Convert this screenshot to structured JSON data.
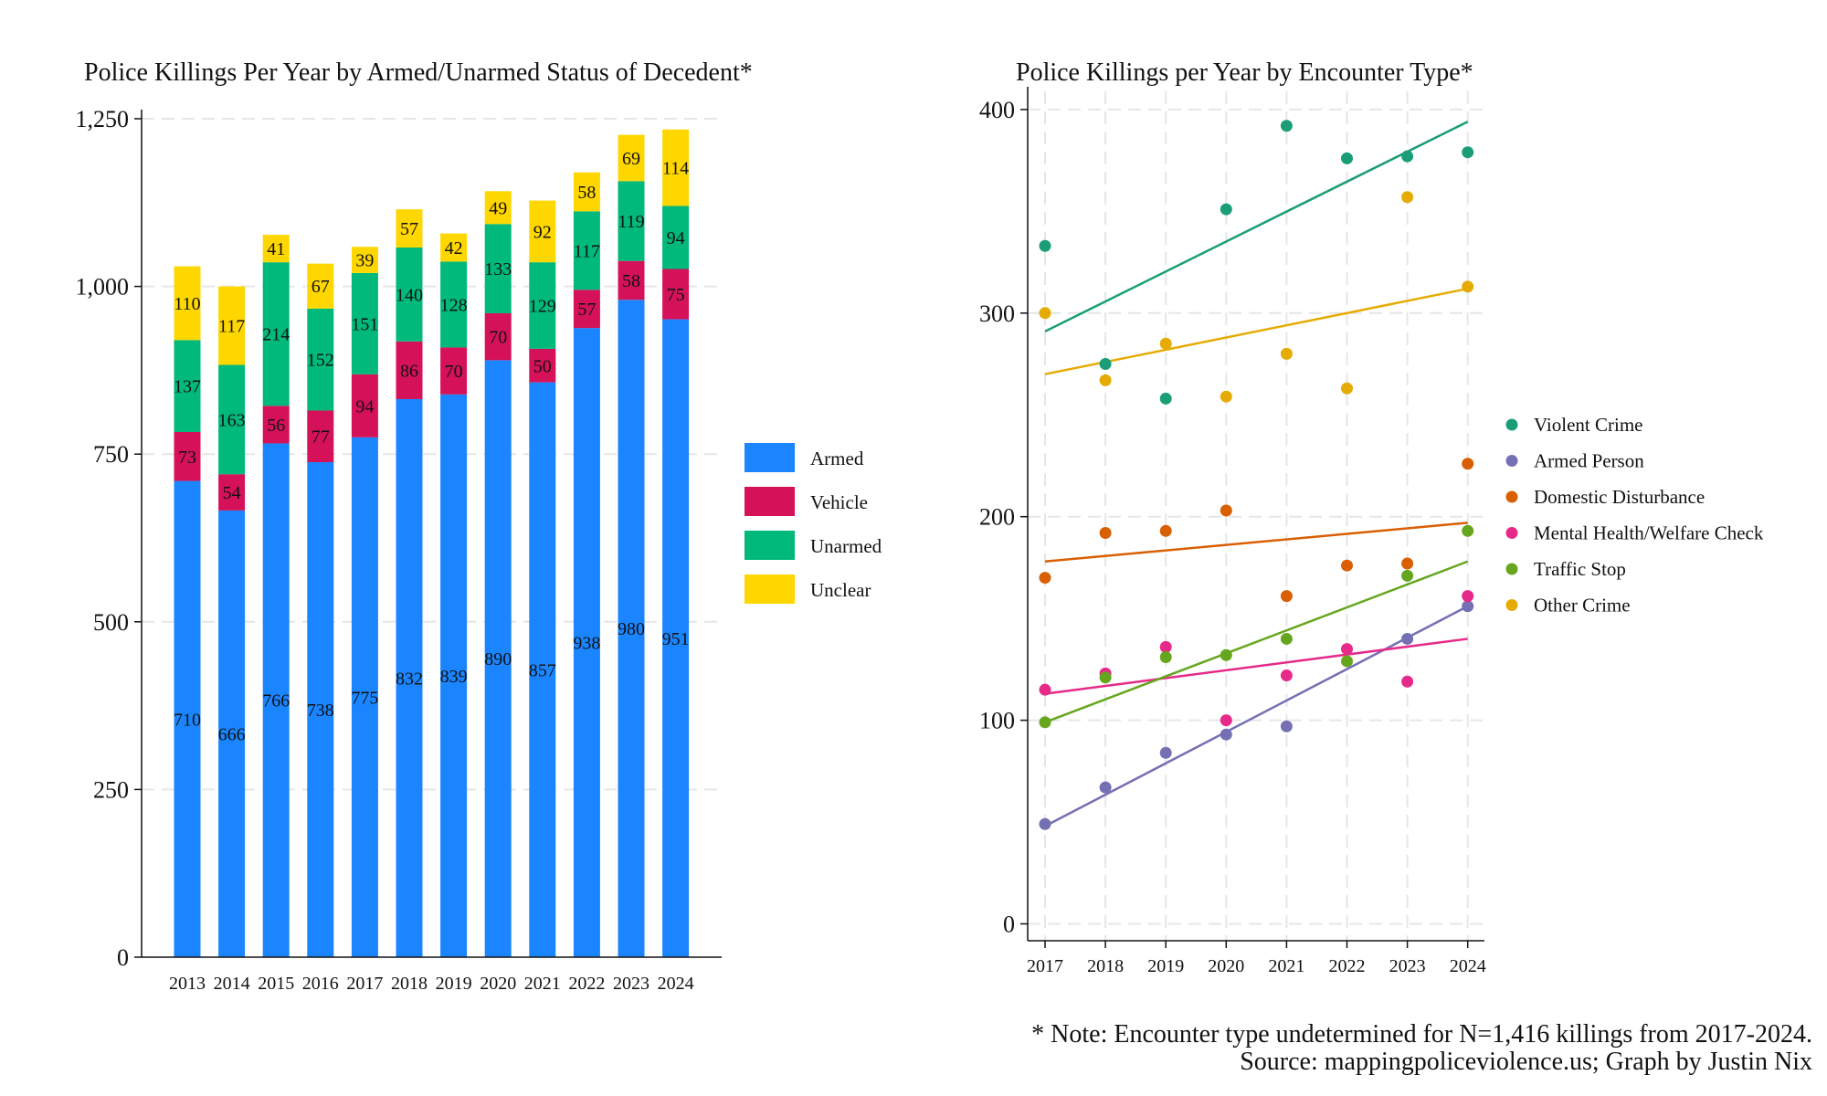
{
  "left_chart": {
    "title": "Police Killings Per Year by Armed/Unarmed Status of Decedent*",
    "y_ticks": [
      "0",
      "250",
      "500",
      "750",
      "1,000",
      "1,250"
    ],
    "legend": [
      "Armed",
      "Vehicle",
      "Unarmed",
      "Unclear"
    ]
  },
  "right_chart": {
    "title": "Police Killings per Year by Encounter Type*",
    "y_ticks": [
      "0",
      "100",
      "200",
      "300",
      "400"
    ],
    "legend": [
      "Violent Crime",
      "Armed Person",
      "Domestic Disturbance",
      "Mental Health/Welfare Check",
      "Traffic Stop",
      "Other Crime"
    ]
  },
  "footer": {
    "note": "* Note: Encounter type undetermined for N=1,416 killings from 2017-2024.",
    "source": "Source: mappingpoliceviolence.us; Graph by Justin Nix"
  },
  "chart_data": [
    {
      "type": "bar",
      "stacked": true,
      "title": "Police Killings Per Year by Armed/Unarmed Status of Decedent*",
      "categories": [
        "2013",
        "2014",
        "2015",
        "2016",
        "2017",
        "2018",
        "2019",
        "2020",
        "2021",
        "2022",
        "2023",
        "2024"
      ],
      "ylim": [
        0,
        1250
      ],
      "grid": true,
      "legend_position": "right",
      "series": [
        {
          "name": "Armed",
          "color": "#1a85ff",
          "values": [
            710,
            666,
            766,
            738,
            775,
            832,
            839,
            890,
            857,
            938,
            980,
            951
          ]
        },
        {
          "name": "Vehicle",
          "color": "#d41159",
          "values": [
            73,
            54,
            56,
            77,
            94,
            86,
            70,
            70,
            50,
            57,
            58,
            75
          ]
        },
        {
          "name": "Unarmed",
          "color": "#00b97a",
          "values": [
            137,
            163,
            214,
            152,
            151,
            140,
            128,
            133,
            129,
            117,
            119,
            94
          ]
        },
        {
          "name": "Unclear",
          "color": "#ffd700",
          "values": [
            110,
            117,
            41,
            67,
            39,
            57,
            42,
            49,
            92,
            58,
            69,
            114
          ]
        }
      ]
    },
    {
      "type": "scatter",
      "title": "Police Killings per Year by Encounter Type*",
      "x": [
        "2017",
        "2018",
        "2019",
        "2020",
        "2021",
        "2022",
        "2023",
        "2024"
      ],
      "ylim": [
        0,
        400
      ],
      "grid": true,
      "fit_lines": true,
      "legend_position": "right",
      "series": [
        {
          "name": "Violent Crime",
          "color": "#1b9e77",
          "values": [
            333,
            275,
            258,
            351,
            392,
            376,
            377,
            379
          ],
          "fit": [
            291,
            394
          ]
        },
        {
          "name": "Armed Person",
          "color": "#7570b3",
          "values": [
            49,
            67,
            84,
            93,
            97,
            null,
            140,
            156
          ],
          "fit": [
            48,
            156
          ]
        },
        {
          "name": "Domestic Disturbance",
          "color": "#d95f02",
          "values": [
            170,
            192,
            193,
            203,
            161,
            176,
            177,
            226
          ],
          "fit": [
            178,
            197
          ]
        },
        {
          "name": "Mental Health/Welfare Check",
          "color": "#e7298a",
          "values": [
            115,
            123,
            136,
            100,
            122,
            135,
            119,
            161
          ],
          "fit": [
            113,
            140
          ]
        },
        {
          "name": "Traffic Stop",
          "color": "#66a61e",
          "values": [
            99,
            121,
            131,
            132,
            140,
            129,
            171,
            193
          ],
          "fit": [
            99,
            178
          ]
        },
        {
          "name": "Other Crime",
          "color": "#e6ab02",
          "values": [
            300,
            267,
            285,
            259,
            280,
            263,
            357,
            313
          ],
          "fit": [
            270,
            312
          ]
        }
      ]
    }
  ]
}
